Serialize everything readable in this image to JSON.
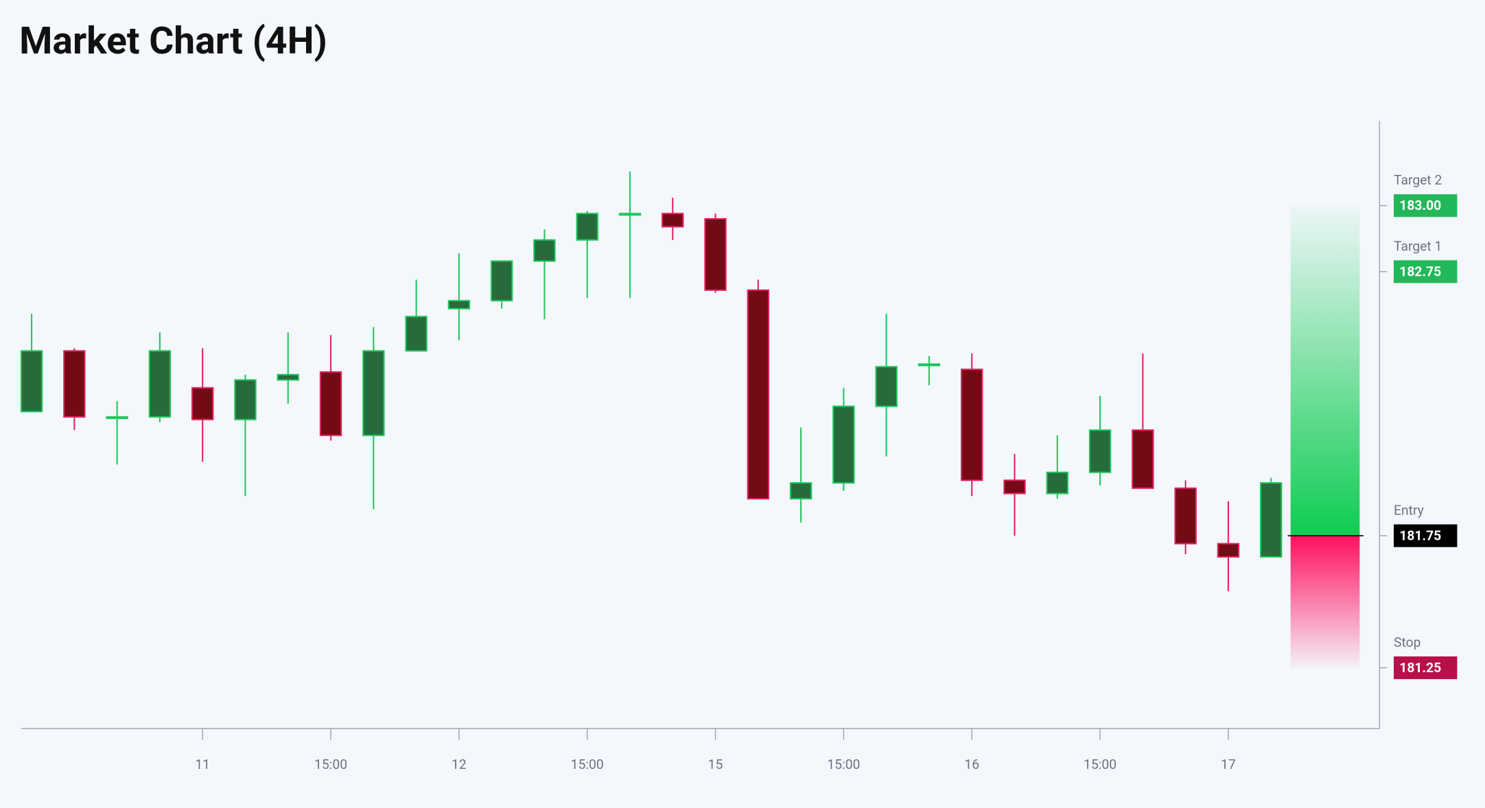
{
  "chart_data": {
    "type": "candlestick",
    "title": "Market Chart (4H)",
    "categories": [
      null,
      null,
      null,
      null,
      "11",
      null,
      null,
      "15:00",
      null,
      null,
      "12",
      null,
      null,
      "15:00",
      null,
      null,
      "15",
      null,
      null,
      "15:00",
      null,
      null,
      "16",
      null,
      null,
      "15:00",
      null,
      null,
      "17",
      null
    ],
    "open": [
      182.22,
      182.45,
      182.2,
      182.2,
      182.31,
      182.19,
      182.34,
      182.37,
      182.13,
      182.45,
      182.61,
      182.64,
      182.79,
      182.87,
      182.97,
      182.97,
      182.95,
      182.68,
      181.89,
      181.95,
      182.24,
      182.4,
      182.38,
      181.96,
      181.91,
      181.99,
      182.15,
      181.93,
      181.72,
      181.67
    ],
    "high": [
      182.59,
      182.46,
      182.26,
      182.52,
      182.46,
      182.36,
      182.52,
      182.51,
      182.54,
      182.72,
      182.82,
      182.79,
      182.91,
      182.98,
      183.13,
      183.03,
      182.97,
      182.72,
      182.16,
      182.31,
      182.59,
      182.43,
      182.44,
      182.06,
      182.13,
      182.28,
      182.44,
      181.96,
      181.88,
      181.97
    ],
    "low": [
      182.22,
      182.15,
      182.02,
      182.18,
      182.03,
      181.9,
      182.25,
      182.11,
      181.85,
      182.45,
      182.49,
      182.61,
      182.57,
      182.65,
      182.65,
      182.87,
      182.67,
      181.89,
      181.8,
      181.92,
      182.05,
      182.32,
      181.9,
      181.75,
      181.89,
      181.94,
      181.93,
      181.68,
      181.54,
      181.67
    ],
    "close": [
      182.45,
      182.2,
      182.2,
      182.45,
      182.19,
      182.34,
      182.36,
      182.13,
      182.45,
      182.58,
      182.64,
      182.79,
      182.87,
      182.97,
      182.97,
      182.92,
      182.68,
      181.89,
      181.95,
      182.24,
      182.39,
      182.4,
      181.96,
      181.91,
      181.99,
      182.15,
      181.93,
      181.72,
      181.67,
      181.95
    ],
    "up_color": "#22c55e",
    "down_color": "#e0245e",
    "ylim": [
      181.02,
      183.32
    ],
    "levels": [
      {
        "name": "Target 2",
        "value": 183.0,
        "value_label": "183.00",
        "color": "#22b859"
      },
      {
        "name": "Target 1",
        "value": 182.75,
        "value_label": "182.75",
        "color": "#22b859"
      },
      {
        "name": "Entry",
        "value": 181.75,
        "value_label": "181.75",
        "color": "#000000"
      },
      {
        "name": "Stop",
        "value": 181.25,
        "value_label": "181.25",
        "color": "#b8104a"
      }
    ]
  }
}
